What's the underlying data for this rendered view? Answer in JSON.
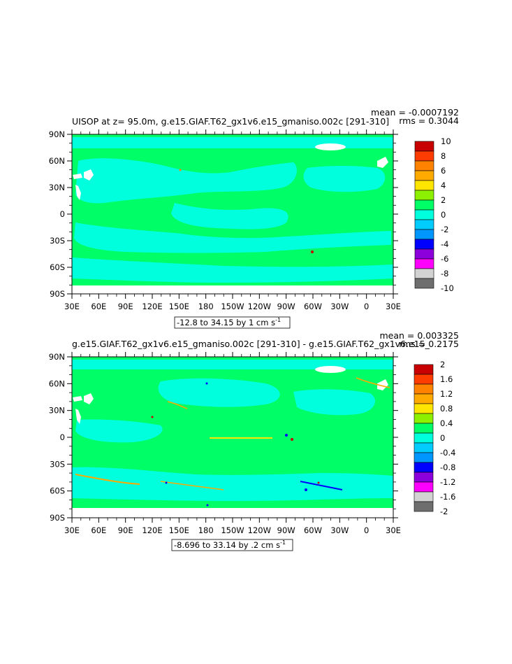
{
  "colors": {
    "land": "#00ff66",
    "ocean": "#00ffdd",
    "ice": "#ffffff",
    "frame": "#000000"
  },
  "chart_data": [
    {
      "type": "heatmap",
      "title": "UISOP at z=  95.0m, g.e15.GIAF.T62_gx1v6.e15_gmaniso.002c [291-310]",
      "mean_text": "mean = -0.0007192",
      "rms_text": "rms = 0.3044",
      "range_text": "-12.8 to 34.15 by 1 cm s",
      "range_sup": "-1",
      "x_ticks": [
        "30E",
        "60E",
        "90E",
        "120E",
        "150E",
        "180",
        "150W",
        "120W",
        "90W",
        "60W",
        "30W",
        "0",
        "30E"
      ],
      "y_ticks": [
        "90N",
        "60N",
        "30N",
        "0",
        "30S",
        "60S",
        "90S"
      ],
      "colorbar_labels": [
        "10",
        "8",
        "6",
        "4",
        "2",
        "0",
        "-2",
        "-4",
        "-6",
        "-8",
        "-10"
      ],
      "colorbar_colors": [
        "#c80000",
        "#ff3c00",
        "#ff8200",
        "#ffaa00",
        "#ffe600",
        "#8cf000",
        "#00ff66",
        "#00ffdd",
        "#00ccff",
        "#0096ff",
        "#0000ff",
        "#8c00dc",
        "#ff00ff",
        "#d2d2d2",
        "#6e6e6e"
      ]
    },
    {
      "type": "heatmap",
      "title": "g.e15.GIAF.T62_gx1v6.e15_gmaniso.002c [291-310] - g.e15.GIAF.T62_gx1v6.e15_",
      "mean_text": "mean = 0.003325",
      "rms_text": "rms = 0.2175",
      "range_text": "-8.696 to 33.14 by .2 cm s",
      "range_sup": "-1",
      "x_ticks": [
        "30E",
        "60E",
        "90E",
        "120E",
        "150E",
        "180",
        "150W",
        "120W",
        "90W",
        "60W",
        "30W",
        "0",
        "30E"
      ],
      "y_ticks": [
        "90N",
        "60N",
        "30N",
        "0",
        "30S",
        "60S",
        "90S"
      ],
      "colorbar_labels": [
        "2",
        "1.6",
        "1.2",
        "0.8",
        "0.4",
        "0",
        "-0.4",
        "-0.8",
        "-1.2",
        "-1.6",
        "-2"
      ],
      "colorbar_colors": [
        "#c80000",
        "#ff3c00",
        "#ff8200",
        "#ffaa00",
        "#ffe600",
        "#8cf000",
        "#00ff66",
        "#00ffdd",
        "#00ccff",
        "#0096ff",
        "#0000ff",
        "#8c00dc",
        "#ff00ff",
        "#d2d2d2",
        "#6e6e6e"
      ]
    }
  ]
}
